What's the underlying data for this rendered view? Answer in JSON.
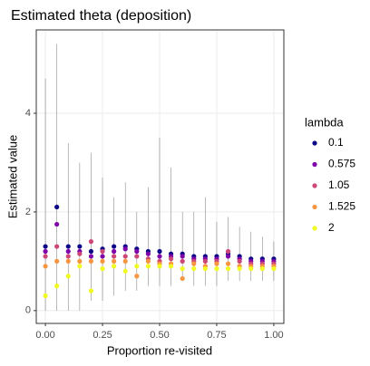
{
  "chart_data": {
    "type": "scatter",
    "title": "Estimated theta (deposition)",
    "x_label": "Proportion re-visited",
    "y_label": "Estimated value",
    "legend_title": "lambda",
    "x": [
      0,
      0.05,
      0.1,
      0.15,
      0.2,
      0.25,
      0.3,
      0.35,
      0.4,
      0.45,
      0.5,
      0.55,
      0.6,
      0.65,
      0.7,
      0.75,
      0.8,
      0.85,
      0.9,
      0.95,
      1
    ],
    "interval_low": [
      0,
      0,
      0,
      0,
      0.2,
      0.2,
      0.3,
      0.4,
      0.4,
      0.5,
      0.5,
      0.5,
      0.6,
      0.5,
      0.5,
      0.5,
      0.6,
      0.6,
      0.6,
      0.6,
      0.6
    ],
    "interval_high": [
      4.7,
      5.4,
      3.4,
      3.0,
      3.2,
      2.7,
      2.3,
      2.6,
      2.0,
      2.5,
      3.5,
      2.9,
      2.0,
      2.0,
      2.3,
      1.8,
      1.9,
      1.7,
      1.6,
      1.5,
      1.4
    ],
    "series": [
      {
        "name": "0.1",
        "color": "#0d0887",
        "values": [
          1.3,
          2.1,
          1.3,
          1.3,
          1.2,
          1.25,
          1.3,
          1.3,
          1.25,
          1.2,
          1.2,
          1.15,
          1.15,
          1.1,
          1.1,
          1.1,
          1.15,
          1.1,
          1.05,
          1.05,
          1.05
        ]
      },
      {
        "name": "0.575",
        "color": "#7e03a8",
        "values": [
          1.2,
          1.75,
          1.2,
          1.2,
          1.1,
          1.1,
          1.2,
          1.25,
          1.2,
          1.15,
          1.1,
          1.1,
          1.1,
          1.05,
          1.05,
          1.05,
          1.1,
          1.05,
          1.0,
          1.0,
          1.0
        ]
      },
      {
        "name": "1.05",
        "color": "#cc4778",
        "values": [
          1.1,
          1.3,
          1.1,
          1.15,
          1.4,
          1.2,
          1.1,
          1.1,
          1.1,
          1.05,
          1.0,
          1.05,
          1.0,
          1.0,
          1.0,
          1.0,
          1.2,
          1.0,
          0.95,
          0.95,
          0.95
        ]
      },
      {
        "name": "1.525",
        "color": "#f89540",
        "values": [
          0.9,
          1.0,
          1.0,
          1.0,
          1.0,
          1.0,
          1.0,
          1.0,
          0.7,
          1.0,
          0.95,
          0.95,
          0.65,
          0.95,
          0.9,
          0.95,
          0.95,
          0.9,
          0.9,
          0.9,
          0.9
        ]
      },
      {
        "name": "2",
        "color": "#f0f921",
        "values": [
          0.3,
          0.5,
          0.7,
          0.9,
          0.4,
          0.85,
          0.9,
          0.8,
          0.9,
          0.9,
          0.9,
          0.9,
          0.85,
          0.85,
          0.85,
          0.85,
          0.85,
          0.85,
          0.85,
          0.85,
          0.85
        ]
      }
    ],
    "xlim": [
      -0.04,
      1.044
    ],
    "ylim": [
      -0.26,
      5.69
    ],
    "xticks": [
      {
        "value": 0,
        "label": "0.00"
      },
      {
        "value": 0.25,
        "label": "0.25"
      },
      {
        "value": 0.5,
        "label": "0.50"
      },
      {
        "value": 0.75,
        "label": "0.75"
      },
      {
        "value": 1,
        "label": "1.00"
      }
    ],
    "yticks": [
      0,
      2,
      4
    ],
    "grid": true
  }
}
